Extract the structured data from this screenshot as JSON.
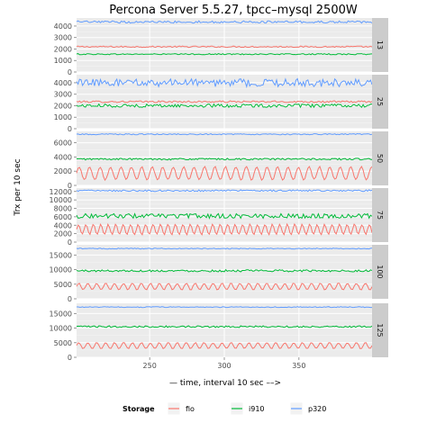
{
  "chart_data": {
    "type": "line",
    "title": "Percona Server 5.5.27, tpcc–mysql 2500W",
    "xlabel": "— time, interval 10 sec ––>",
    "ylabel": "Trx per 10 sec",
    "xlim": [
      201,
      399
    ],
    "x_ticks": [
      250,
      300,
      350
    ],
    "legend": {
      "title": "Storage",
      "position": "bottom"
    },
    "series_meta": [
      {
        "name": "fio",
        "color": "#F8766D"
      },
      {
        "name": "i910",
        "color": "#00BA38"
      },
      {
        "name": "p320",
        "color": "#619CFF"
      }
    ],
    "grid": true,
    "panels": [
      {
        "strip": "13",
        "ylim": [
          0,
          4700
        ],
        "y_ticks": [
          0,
          1000,
          2000,
          3000,
          4000
        ],
        "series": [
          {
            "name": "fio",
            "level": 2200,
            "noise": 60,
            "period": 0,
            "amp": 0
          },
          {
            "name": "i910",
            "level": 1550,
            "noise": 50,
            "period": 0,
            "amp": 0
          },
          {
            "name": "p320",
            "level": 4350,
            "noise": 100,
            "period": 0,
            "amp": 0
          }
        ]
      },
      {
        "strip": "25",
        "ylim": [
          0,
          4700
        ],
        "y_ticks": [
          0,
          1000,
          2000,
          3000,
          4000
        ],
        "series": [
          {
            "name": "fio",
            "level": 2350,
            "noise": 80,
            "period": 0,
            "amp": 0
          },
          {
            "name": "i910",
            "level": 2000,
            "noise": 140,
            "period": 0,
            "amp": 0
          },
          {
            "name": "p320",
            "level": 4000,
            "noise": 350,
            "period": 0,
            "amp": 0
          }
        ]
      },
      {
        "strip": "50",
        "ylim": [
          0,
          7600
        ],
        "y_ticks": [
          0,
          2000,
          4000,
          6000
        ],
        "series": [
          {
            "name": "fio",
            "level": 1700,
            "noise": 80,
            "period": 7,
            "amp": 900
          },
          {
            "name": "i910",
            "level": 3700,
            "noise": 120,
            "period": 0,
            "amp": 0
          },
          {
            "name": "p320",
            "level": 7200,
            "noise": 80,
            "period": 0,
            "amp": 0
          }
        ]
      },
      {
        "strip": "75",
        "ylim": [
          0,
          12800
        ],
        "y_ticks": [
          0,
          2000,
          4000,
          6000,
          8000,
          10000,
          12000
        ],
        "series": [
          {
            "name": "fio",
            "level": 3000,
            "noise": 120,
            "period": 5,
            "amp": 1200
          },
          {
            "name": "i910",
            "level": 6200,
            "noise": 550,
            "period": 0,
            "amp": 0
          },
          {
            "name": "p320",
            "level": 12200,
            "noise": 200,
            "period": 0,
            "amp": 0
          }
        ]
      },
      {
        "strip": "100",
        "ylim": [
          0,
          18500
        ],
        "y_ticks": [
          0,
          5000,
          10000,
          15000
        ],
        "series": [
          {
            "name": "fio",
            "level": 4200,
            "noise": 150,
            "period": 6,
            "amp": 1100
          },
          {
            "name": "i910",
            "level": 9600,
            "noise": 350,
            "period": 0,
            "amp": 0
          },
          {
            "name": "p320",
            "level": 17200,
            "noise": 150,
            "period": 0,
            "amp": 0
          }
        ]
      },
      {
        "strip": "125",
        "ylim": [
          0,
          18500
        ],
        "y_ticks": [
          0,
          5000,
          10000,
          15000
        ],
        "series": [
          {
            "name": "fio",
            "level": 4000,
            "noise": 150,
            "period": 6,
            "amp": 1000
          },
          {
            "name": "i910",
            "level": 10500,
            "noise": 300,
            "period": 0,
            "amp": 0
          },
          {
            "name": "p320",
            "level": 17200,
            "noise": 150,
            "period": 0,
            "amp": 0
          }
        ]
      }
    ]
  }
}
